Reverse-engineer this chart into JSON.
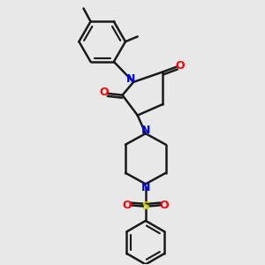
{
  "background_color": "#e8e8e8",
  "bond_color": "#1a1a1a",
  "nitrogen_color": "#0000ff",
  "oxygen_color": "#ff0000",
  "sulfur_color": "#cccc00",
  "line_width": 1.8,
  "figsize": [
    3.0,
    3.0
  ],
  "dpi": 100,
  "xlim": [
    -0.45,
    0.55
  ],
  "ylim": [
    -0.58,
    0.72
  ]
}
